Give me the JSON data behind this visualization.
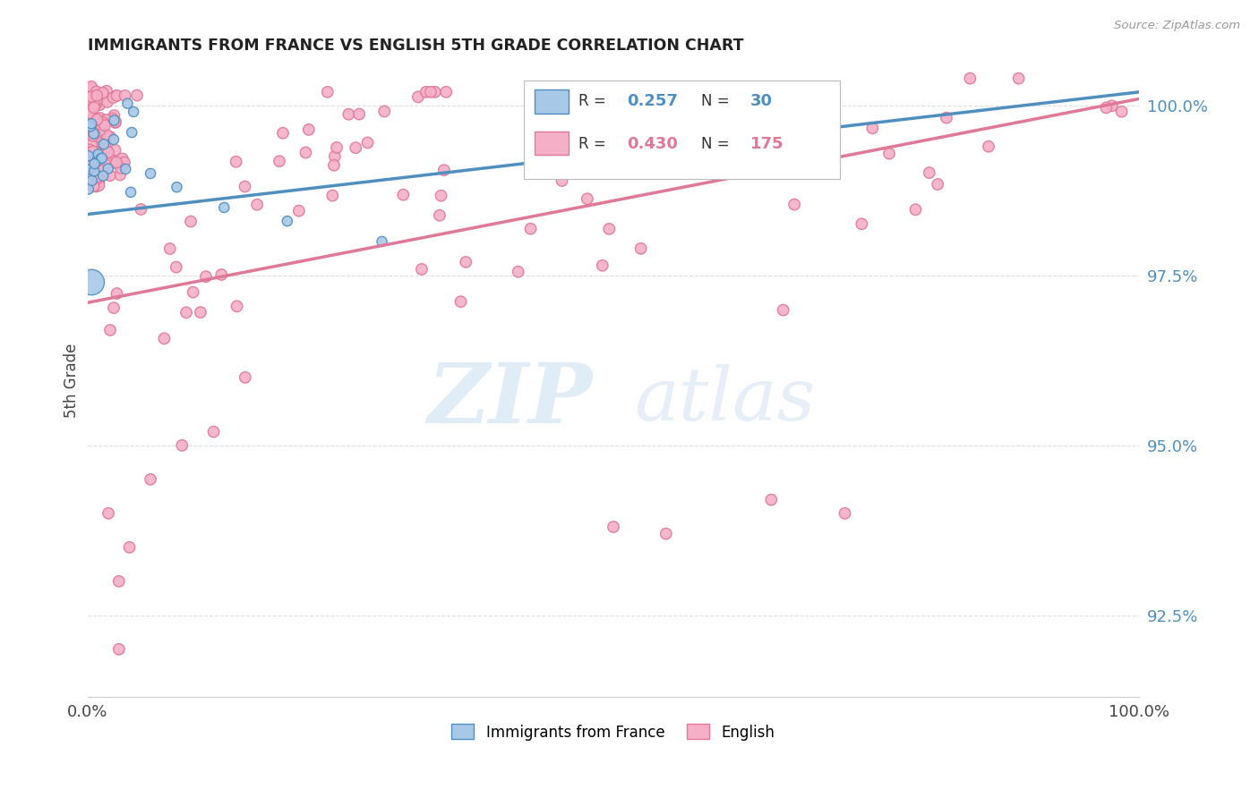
{
  "title": "IMMIGRANTS FROM FRANCE VS ENGLISH 5TH GRADE CORRELATION CHART",
  "source": "Source: ZipAtlas.com",
  "ylabel": "5th Grade",
  "xlim": [
    0.0,
    1.0
  ],
  "ylim": [
    0.913,
    1.006
  ],
  "yticks": [
    0.925,
    0.95,
    0.975,
    1.0
  ],
  "ytick_labels": [
    "92.5%",
    "95.0%",
    "97.5%",
    "100.0%"
  ],
  "xtick_labels": [
    "0.0%",
    "",
    "",
    "",
    "",
    "",
    "",
    "",
    "",
    "",
    "100.0%"
  ],
  "legend_entries": [
    {
      "label": "Immigrants from France",
      "R": 0.257,
      "N": 30,
      "color": "#a8c8e8"
    },
    {
      "label": "English",
      "R": 0.43,
      "N": 175,
      "color": "#f5b0c8"
    }
  ],
  "blue_line_x": [
    0.0,
    1.0
  ],
  "blue_line_y": [
    0.984,
    1.002
  ],
  "pink_line_x": [
    0.0,
    1.0
  ],
  "pink_line_y": [
    0.971,
    1.001
  ],
  "blue_color": "#4f8fbf",
  "pink_color": "#e07898",
  "blue_dot_color": "#a8c8e8",
  "pink_dot_color": "#f5b0c8",
  "watermark_zip": "ZIP",
  "watermark_atlas": "atlas",
  "background_color": "#ffffff",
  "grid_color": "#dddddd"
}
